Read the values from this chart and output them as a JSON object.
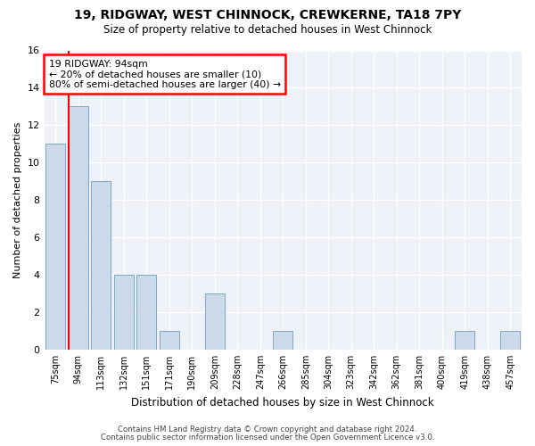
{
  "title1": "19, RIDGWAY, WEST CHINNOCK, CREWKERNE, TA18 7PY",
  "title2": "Size of property relative to detached houses in West Chinnock",
  "xlabel": "Distribution of detached houses by size in West Chinnock",
  "ylabel": "Number of detached properties",
  "categories": [
    "75sqm",
    "94sqm",
    "113sqm",
    "132sqm",
    "151sqm",
    "171sqm",
    "190sqm",
    "209sqm",
    "228sqm",
    "247sqm",
    "266sqm",
    "285sqm",
    "304sqm",
    "323sqm",
    "342sqm",
    "362sqm",
    "381sqm",
    "400sqm",
    "419sqm",
    "438sqm",
    "457sqm"
  ],
  "values": [
    11,
    13,
    9,
    4,
    4,
    1,
    0,
    3,
    0,
    0,
    1,
    0,
    0,
    0,
    0,
    0,
    0,
    0,
    1,
    0,
    1
  ],
  "bar_color": "#ccd9e8",
  "bar_edge_color": "#7aaac8",
  "redline_index": 1,
  "annotation_lines": [
    "19 RIDGWAY: 94sqm",
    "← 20% of detached houses are smaller (10)",
    "80% of semi-detached houses are larger (40) →"
  ],
  "annotation_box_color": "white",
  "annotation_box_edge_color": "red",
  "ylim": [
    0,
    16
  ],
  "yticks": [
    0,
    2,
    4,
    6,
    8,
    10,
    12,
    14,
    16
  ],
  "footer1": "Contains HM Land Registry data © Crown copyright and database right 2024.",
  "footer2": "Contains public sector information licensed under the Open Government Licence v3.0.",
  "bg_color": "#ffffff",
  "plot_bg_color": "#eef2f8"
}
